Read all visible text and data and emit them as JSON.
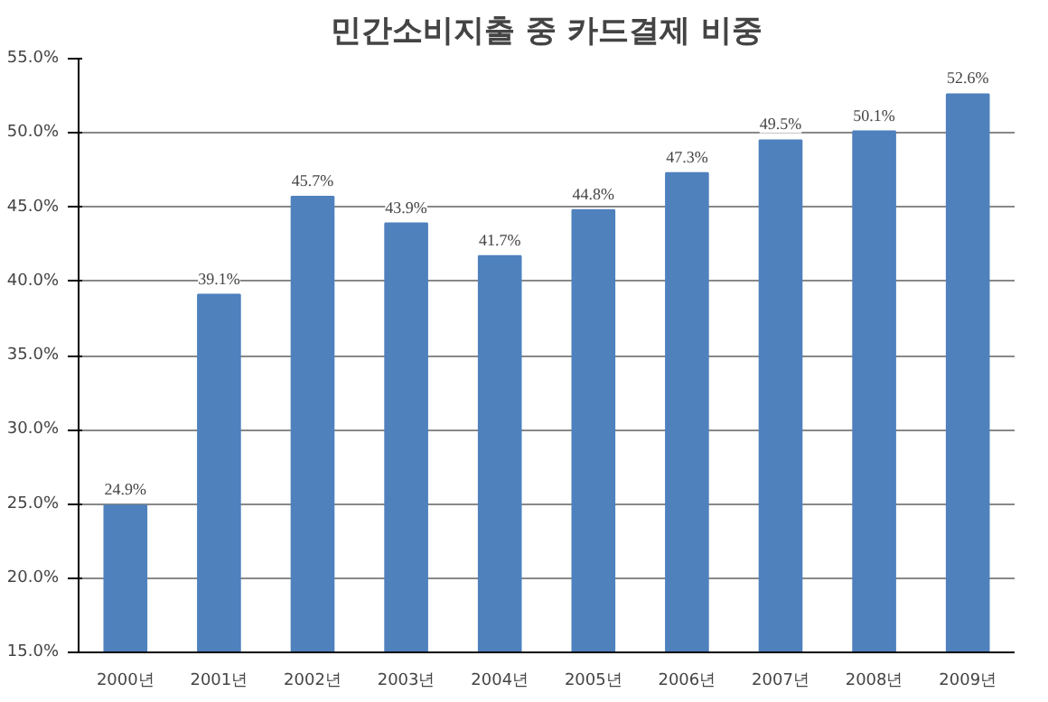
{
  "chart_data": {
    "type": "bar",
    "title": "민간소비지출 중 카드결제 비중",
    "categories": [
      "2000년",
      "2001년",
      "2002년",
      "2003년",
      "2004년",
      "2005년",
      "2006년",
      "2007년",
      "2008년",
      "2009년"
    ],
    "values": [
      24.9,
      39.1,
      45.7,
      43.9,
      41.7,
      44.8,
      47.3,
      49.5,
      50.1,
      52.6
    ],
    "value_labels": [
      "24.9%",
      "39.1%",
      "45.7%",
      "43.9%",
      "41.7%",
      "44.8%",
      "47.3%",
      "49.5%",
      "50.1%",
      "52.6%"
    ],
    "color": "#4f81bd",
    "ylim": [
      15,
      55
    ],
    "yticks": [
      {
        "value": 15,
        "label": "15.0%"
      },
      {
        "value": 20,
        "label": "20.0%"
      },
      {
        "value": 25,
        "label": "25.0%"
      },
      {
        "value": 30,
        "label": "30.0%"
      },
      {
        "value": 35,
        "label": "35.0%"
      },
      {
        "value": 40,
        "label": "40.0%"
      },
      {
        "value": 45,
        "label": "45.0%"
      },
      {
        "value": 50,
        "label": "50.0%"
      },
      {
        "value": 55,
        "label": "55.0%"
      }
    ],
    "grid": "y"
  }
}
